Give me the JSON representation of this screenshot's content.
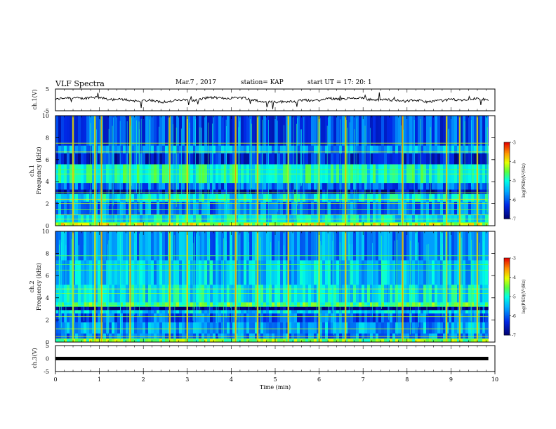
{
  "header": {
    "title": "VLF Spectra",
    "date": "Mar.7 , 2017",
    "station": "station= KAP",
    "start_ut": "start UT =   17: 20: 1"
  },
  "chart_data": [
    {
      "type": "line",
      "panel": "ch1-waveform",
      "ylabel": "ch.1(V)",
      "ylim": [
        -5,
        5
      ],
      "y_ticks": [
        "5",
        "-5"
      ],
      "xlim": [
        0,
        10
      ],
      "x_end_of_data": 9.85,
      "trace_level_range_V": [
        -1.5,
        1.5
      ]
    },
    {
      "type": "heatmap",
      "panel": "ch1-spectrogram",
      "ylabel_line1": "ch.1",
      "ylabel_line2": "Frequency (kHz)",
      "ylim": [
        0,
        10
      ],
      "y_ticks": [
        "0",
        "2",
        "4",
        "6",
        "8",
        "10"
      ],
      "xlim": [
        0,
        10
      ],
      "x_end_of_data": 9.85,
      "colorbar": {
        "label": "log(PSD)(V²/Hz)",
        "range": [
          -7,
          -3
        ],
        "ticks": [
          "-3",
          "-4",
          "-5",
          "-6",
          "-7"
        ]
      },
      "band_levels": [
        {
          "from_khz": 0.0,
          "to_khz": 0.3,
          "level": -4.2
        },
        {
          "from_khz": 0.3,
          "to_khz": 1.0,
          "level": -5.2
        },
        {
          "from_khz": 1.0,
          "to_khz": 2.2,
          "level": -5.8
        },
        {
          "from_khz": 2.2,
          "to_khz": 2.9,
          "level": -5.2
        },
        {
          "from_khz": 2.9,
          "to_khz": 3.3,
          "level": -6.7
        },
        {
          "from_khz": 3.3,
          "to_khz": 3.9,
          "level": -6.0
        },
        {
          "from_khz": 3.9,
          "to_khz": 5.6,
          "level": -5.0
        },
        {
          "from_khz": 5.6,
          "to_khz": 6.6,
          "level": -6.4
        },
        {
          "from_khz": 6.6,
          "to_khz": 7.3,
          "level": -5.6
        },
        {
          "from_khz": 7.3,
          "to_khz": 10.0,
          "level": -6.1
        }
      ],
      "tone_lines_khz": [
        0.3,
        0.6,
        1.0,
        1.5,
        2.0,
        2.4,
        3.0,
        4.7,
        5.1,
        6.7,
        7.5
      ],
      "burst_times_min": [
        0.4,
        0.9,
        1.05,
        1.7,
        2.6,
        3.0,
        4.1,
        4.6,
        5.3,
        6.0,
        6.6,
        7.9,
        8.9,
        9.2,
        9.6
      ]
    },
    {
      "type": "heatmap",
      "panel": "ch2-spectrogram",
      "ylabel_line1": "ch.2",
      "ylabel_line2": "Frequency (kHz)",
      "ylim": [
        0,
        10
      ],
      "y_ticks": [
        "0",
        "2",
        "4",
        "6",
        "8",
        "10"
      ],
      "xlim": [
        0,
        10
      ],
      "x_end_of_data": 9.85,
      "colorbar": {
        "label": "log(PSD)(V²/Hz)",
        "range": [
          -7,
          -3
        ],
        "ticks": [
          "-3",
          "-4",
          "-5",
          "-6",
          "-7"
        ]
      },
      "band_levels": [
        {
          "from_khz": 0.0,
          "to_khz": 0.3,
          "level": -4.5
        },
        {
          "from_khz": 0.3,
          "to_khz": 0.8,
          "level": -5.8
        },
        {
          "from_khz": 0.8,
          "to_khz": 1.8,
          "level": -5.6
        },
        {
          "from_khz": 1.8,
          "to_khz": 2.6,
          "level": -6.0
        },
        {
          "from_khz": 2.6,
          "to_khz": 2.9,
          "level": -5.3
        },
        {
          "from_khz": 2.9,
          "to_khz": 3.2,
          "level": -6.9
        },
        {
          "from_khz": 3.2,
          "to_khz": 3.6,
          "level": -4.7
        },
        {
          "from_khz": 3.6,
          "to_khz": 5.2,
          "level": -5.2
        },
        {
          "from_khz": 5.2,
          "to_khz": 7.4,
          "level": -5.4
        },
        {
          "from_khz": 7.4,
          "to_khz": 10.0,
          "level": -5.7
        }
      ],
      "tone_lines_khz": [
        0.3,
        0.5,
        1.2,
        2.3,
        3.3,
        4.4,
        4.8,
        6.5,
        7.0,
        7.8
      ],
      "burst_times_min": [
        0.4,
        0.9,
        1.05,
        1.7,
        2.6,
        3.0,
        4.1,
        4.6,
        5.3,
        6.0,
        6.6,
        7.9,
        8.9,
        9.2,
        9.6
      ]
    },
    {
      "type": "line",
      "panel": "ch3-waveform",
      "ylabel": "ch.3(V)",
      "ylim": [
        -5,
        5
      ],
      "y_ticks": [
        "5",
        "0",
        "-5"
      ],
      "xlim": [
        0,
        10
      ],
      "x_end_of_data": 9.85,
      "trace_level_V": 0,
      "x_ticks": [
        "0",
        "1",
        "2",
        "3",
        "4",
        "5",
        "6",
        "7",
        "8",
        "9",
        "10"
      ],
      "xlabel": "Time  (min)"
    }
  ]
}
